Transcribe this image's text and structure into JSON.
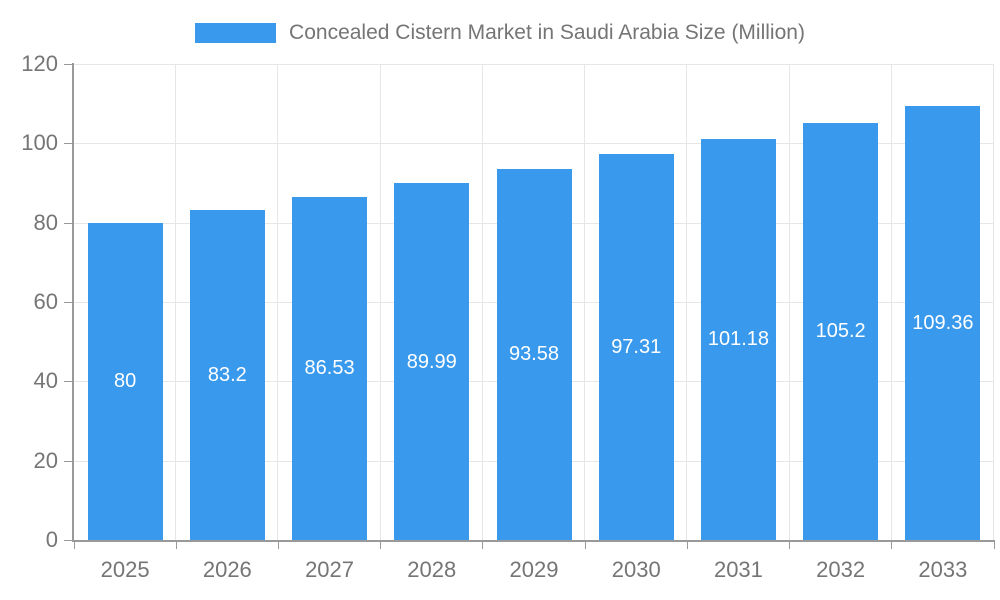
{
  "chart_data": {
    "type": "bar",
    "title": "Concealed Cistern Market in Saudi Arabia Size (Million)",
    "legend_label": "Concealed Cistern Market in Saudi Arabia Size (Million)",
    "legend_position": "top",
    "categories": [
      "2025",
      "2026",
      "2027",
      "2028",
      "2029",
      "2030",
      "2031",
      "2032",
      "2033"
    ],
    "values": [
      80,
      83.2,
      86.53,
      89.99,
      93.58,
      97.31,
      101.18,
      105.2,
      109.36
    ],
    "value_labels": [
      "80",
      "83.2",
      "86.53",
      "89.99",
      "93.58",
      "97.31",
      "101.18",
      "105.2",
      "109.36"
    ],
    "xlabel": "",
    "ylabel": "",
    "ylim": [
      0,
      120
    ],
    "yticks": [
      0,
      20,
      40,
      60,
      80,
      100,
      120
    ],
    "grid": true,
    "bar_color": "#3999EC",
    "value_label_color": "#ffffff",
    "axis_text_color": "#757575",
    "gridline_color": "#e6e6e6",
    "axis_line_color": "#999999",
    "background": "#ffffff"
  }
}
